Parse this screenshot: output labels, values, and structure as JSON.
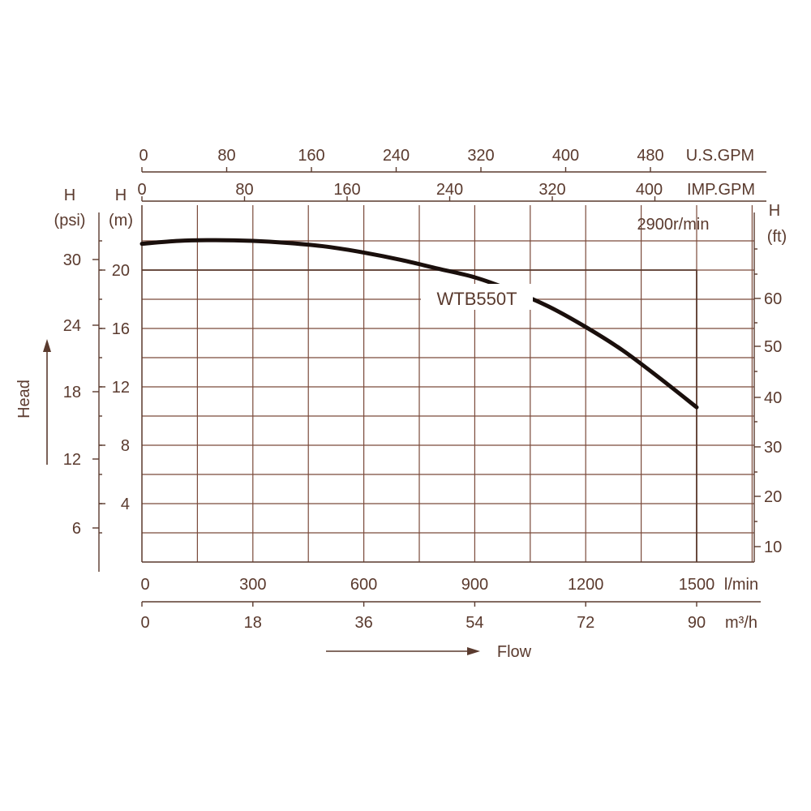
{
  "chart_data": {
    "type": "line",
    "model_label": "WTB550T",
    "speed_label": "2900r/min",
    "flow_axis_label": "Flow",
    "head_axis_label": "Head",
    "x_lpm": {
      "unit": "l/min",
      "range": [
        0,
        1500
      ],
      "ticks": [
        "0",
        "300",
        "600",
        "900",
        "1200",
        "1500"
      ]
    },
    "x_m3h": {
      "unit": "m³/h",
      "range": [
        0,
        90
      ],
      "ticks": [
        "0",
        "18",
        "36",
        "54",
        "72",
        "90"
      ]
    },
    "x_usgpm": {
      "unit": "U.S.GPM",
      "ticks": [
        "0",
        "80",
        "160",
        "240",
        "320",
        "400",
        "480"
      ]
    },
    "x_impgpm": {
      "unit": "IMP.GPM",
      "ticks": [
        "0",
        "80",
        "160",
        "240",
        "320",
        "400"
      ]
    },
    "y_m": {
      "title_top": "H",
      "title_unit": "(m)",
      "range": [
        0,
        22
      ],
      "ticks": [
        "4",
        "8",
        "12",
        "16",
        "20"
      ]
    },
    "y_psi": {
      "title_top": "H",
      "title_unit": "(psi)",
      "ticks": [
        "6",
        "12",
        "18",
        "24",
        "30"
      ]
    },
    "y_ft": {
      "title_top": "H",
      "title_unit": "(ft)",
      "ticks": [
        "10",
        "20",
        "30",
        "40",
        "50",
        "60"
      ]
    },
    "series": [
      {
        "name": "WTB550T",
        "x": [
          0,
          100,
          200,
          300,
          400,
          500,
          600,
          700,
          800,
          900,
          1000,
          1100,
          1200,
          1300,
          1400,
          1500
        ],
        "y": [
          21.8,
          22.0,
          22.05,
          22.0,
          21.85,
          21.6,
          21.2,
          20.7,
          20.1,
          19.5,
          18.6,
          17.5,
          16.1,
          14.5,
          12.6,
          10.6
        ]
      }
    ],
    "reference_lines": {
      "head_m": 20,
      "flow_lpm": 1500
    }
  }
}
